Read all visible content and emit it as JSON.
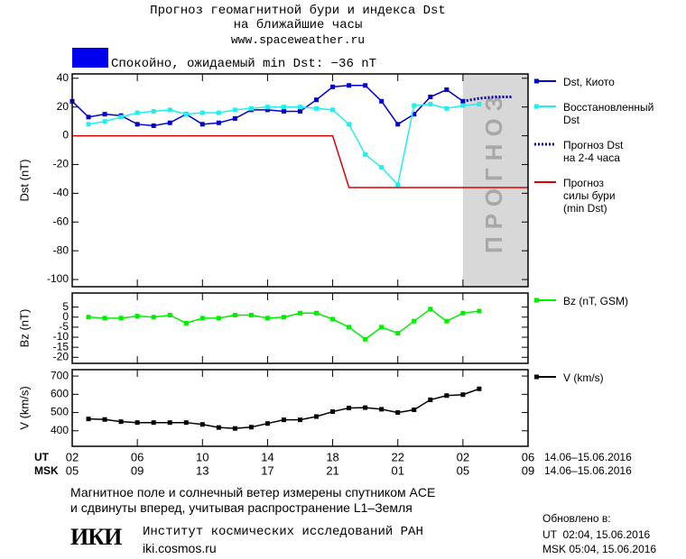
{
  "header": {
    "title": "Прогноз геомагнитной бури и индекса Dst",
    "subtitle": "на ближайшие часы",
    "site": "www.spaceweather.ru"
  },
  "status": {
    "color": "#0000ee",
    "text": "Спокойно, ожидаемый min Dst: −36 nT"
  },
  "chart_data": [
    {
      "type": "line",
      "ylabel": "Dst (nT)",
      "xlim": [
        0,
        28
      ],
      "ylim": [
        -105,
        43
      ],
      "xticks": [
        0,
        4,
        8,
        12,
        16,
        20,
        24,
        28
      ],
      "yticks": [
        40,
        20,
        0,
        -20,
        -40,
        -60,
        -80,
        -100
      ],
      "forecast_region": {
        "from": 24,
        "to": 28,
        "label": "ПРОГНОЗ",
        "color": "#d8d8d8"
      },
      "series": [
        {
          "name": "Dst, Киото",
          "color": "#0000cc",
          "marker": true,
          "dash": false,
          "x": [
            0,
            1,
            2,
            3,
            4,
            5,
            6,
            7,
            8,
            9,
            10,
            11,
            12,
            13,
            14,
            15,
            16,
            17,
            18,
            19,
            20,
            21,
            22,
            23,
            24
          ],
          "values": [
            24,
            13,
            15,
            14,
            8,
            7,
            9,
            15,
            8,
            9,
            12,
            18,
            18,
            17,
            17,
            25,
            34,
            35,
            35,
            24,
            8,
            15,
            27,
            32,
            24
          ]
        },
        {
          "name": "Восстановленный\nDst",
          "color": "#22eeee",
          "marker": true,
          "dash": false,
          "x": [
            1,
            2,
            3,
            4,
            5,
            6,
            7,
            8,
            9,
            10,
            11,
            12,
            13,
            14,
            15,
            16,
            17,
            18,
            19,
            20,
            21,
            22,
            23,
            24,
            25
          ],
          "values": [
            8,
            10,
            13,
            16,
            17,
            18,
            15,
            16,
            16,
            18,
            19,
            20,
            20,
            20,
            19,
            18,
            8,
            -13,
            -22,
            -34,
            21,
            22,
            19,
            21,
            22
          ]
        },
        {
          "name": "Прогноз Dst\nна 2-4 часа",
          "color": "#0000aa",
          "marker": false,
          "dash": true,
          "x": [
            24,
            25,
            26,
            27
          ],
          "values": [
            24,
            26,
            27,
            27
          ]
        },
        {
          "name": "Прогноз\nсилы бури\n(min Dst)",
          "color": "#dd0000",
          "marker": false,
          "dash": false,
          "x": [
            0,
            16,
            17,
            28
          ],
          "values": [
            0,
            0,
            -36,
            -36
          ]
        }
      ]
    },
    {
      "type": "line",
      "ylabel": "Bz (nT)",
      "xlim": [
        0,
        28
      ],
      "ylim": [
        -23,
        12
      ],
      "xticks": [
        0,
        4,
        8,
        12,
        16,
        20,
        24,
        28
      ],
      "yticks": [
        5,
        0,
        -5,
        -10,
        -15,
        -20
      ],
      "series": [
        {
          "name": "Bz (nT, GSM)",
          "color": "#00ee00",
          "marker": true,
          "dash": false,
          "x": [
            1,
            2,
            3,
            4,
            5,
            6,
            7,
            8,
            9,
            10,
            11,
            12,
            13,
            14,
            15,
            16,
            17,
            18,
            19,
            20,
            21,
            22,
            23,
            24,
            25
          ],
          "values": [
            0,
            -0.5,
            -0.5,
            0.5,
            0,
            1,
            -3,
            -0.5,
            -0.5,
            1,
            1,
            -0.5,
            0,
            2,
            2,
            -1,
            -5,
            -11,
            -5,
            -8,
            -2,
            4,
            -2,
            2,
            3
          ]
        }
      ]
    },
    {
      "type": "line",
      "ylabel": "V (km/s)",
      "xlim": [
        0,
        28
      ],
      "ylim": [
        315,
        735
      ],
      "xticks": [
        {
          "value": 0,
          "label": "02"
        },
        {
          "value": 4,
          "label": "06"
        },
        {
          "value": 8,
          "label": "10"
        },
        {
          "value": 12,
          "label": "14"
        },
        {
          "value": 16,
          "label": "18"
        },
        {
          "value": 20,
          "label": "22"
        },
        {
          "value": 24,
          "label": "02"
        },
        {
          "value": 28,
          "label": "06"
        }
      ],
      "xticks_msk": [
        {
          "value": 0,
          "label": "05"
        },
        {
          "value": 4,
          "label": "09"
        },
        {
          "value": 8,
          "label": "13"
        },
        {
          "value": 12,
          "label": "17"
        },
        {
          "value": 16,
          "label": "21"
        },
        {
          "value": 20,
          "label": "01"
        },
        {
          "value": 24,
          "label": "05"
        },
        {
          "value": 28,
          "label": "09"
        }
      ],
      "xlabel_ut": "UT",
      "xlabel_msk": "MSK",
      "date_ut": "14.06–15.06.2016",
      "date_msk": "14.06–15.06.2016",
      "yticks": [
        700,
        600,
        500,
        400
      ],
      "series": [
        {
          "name": "V (km/s)",
          "color": "#000000",
          "marker": true,
          "dash": false,
          "x": [
            1,
            2,
            3,
            4,
            5,
            6,
            7,
            8,
            9,
            10,
            11,
            12,
            13,
            14,
            15,
            16,
            17,
            18,
            19,
            20,
            21,
            22,
            23,
            24,
            25
          ],
          "values": [
            465,
            462,
            450,
            445,
            445,
            445,
            445,
            435,
            418,
            413,
            420,
            440,
            460,
            460,
            478,
            505,
            525,
            527,
            518,
            500,
            515,
            570,
            593,
            598,
            630
          ]
        }
      ]
    }
  ],
  "footer": {
    "note": "Магнитное поле и солнечный ветер измерены спутником ACE\nи сдвинуты вперед, учитывая распространение L1–Земля",
    "logo": "ИКИ",
    "institute": "Институт космических исследований РАН",
    "url": "iki.cosmos.ru",
    "updated": "Обновлено в:",
    "updated_ut": "UT  02:04, 15.06.2016",
    "updated_msk": "MSK 05:04, 15.06.2016"
  }
}
